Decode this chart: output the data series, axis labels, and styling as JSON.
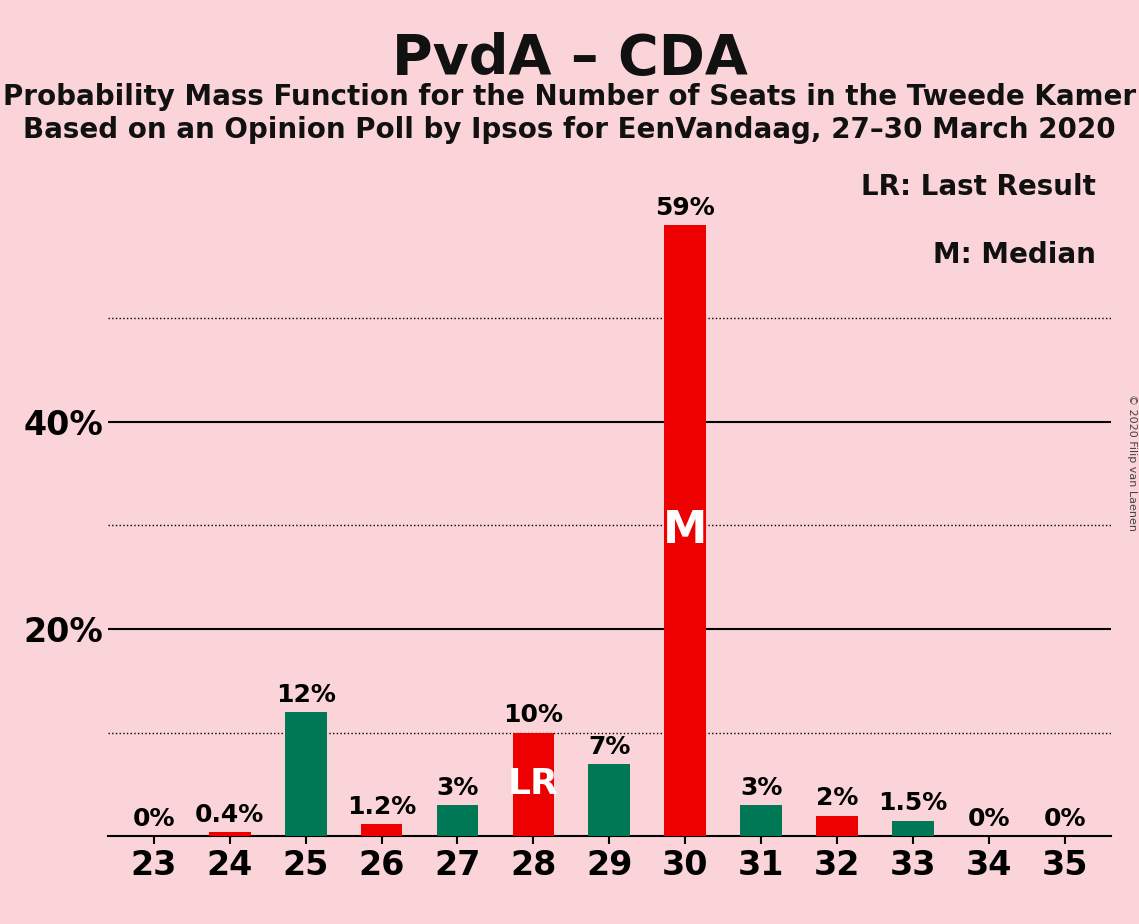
{
  "title": "PvdA – CDA",
  "subtitle1": "Probability Mass Function for the Number of Seats in the Tweede Kamer",
  "subtitle2": "Based on an Opinion Poll by Ipsos for EenVandaag, 27–30 March 2020",
  "copyright": "© 2020 Filip van Laenen",
  "seats": [
    23,
    24,
    25,
    26,
    27,
    28,
    29,
    30,
    31,
    32,
    33,
    34,
    35
  ],
  "values": [
    0.0,
    0.004,
    0.12,
    0.012,
    0.03,
    0.1,
    0.07,
    0.59,
    0.03,
    0.02,
    0.015,
    0.0,
    0.0
  ],
  "colors": [
    "#EE0000",
    "#EE0000",
    "#007755",
    "#EE0000",
    "#007755",
    "#EE0000",
    "#007755",
    "#EE0000",
    "#007755",
    "#EE0000",
    "#007755",
    "#EE0000",
    "#EE0000"
  ],
  "labels": [
    "0%",
    "0.4%",
    "12%",
    "1.2%",
    "3%",
    "10%",
    "7%",
    "59%",
    "3%",
    "2%",
    "1.5%",
    "0%",
    "0%"
  ],
  "bar_annotations": [
    "",
    "",
    "",
    "",
    "",
    "LR",
    "",
    "M",
    "",
    "",
    "",
    "",
    ""
  ],
  "label_colors": [
    "black",
    "black",
    "black",
    "black",
    "black",
    "black",
    "black",
    "black",
    "black",
    "black",
    "black",
    "black",
    "black"
  ],
  "pvda_color": "#EE0000",
  "cda_color": "#007755",
  "background_color": "#FAD4D8",
  "bar_width": 0.55,
  "ylim": [
    0,
    0.66
  ],
  "ytick_positions": [
    0.0,
    0.2,
    0.4
  ],
  "ytick_labels": [
    "",
    "20%",
    "40%"
  ],
  "solid_yticks": [
    0.2,
    0.4
  ],
  "dotted_yticks": [
    0.1,
    0.3,
    0.5
  ],
  "legend_lr": "LR: Last Result",
  "legend_m": "M: Median",
  "label_fontsize": 18,
  "title_fontsize": 40,
  "subtitle_fontsize": 20,
  "tick_fontsize": 24,
  "ytick_fontsize": 24,
  "lr_annotation_fontsize": 26,
  "m_annotation_fontsize": 32,
  "legend_fontsize": 20
}
